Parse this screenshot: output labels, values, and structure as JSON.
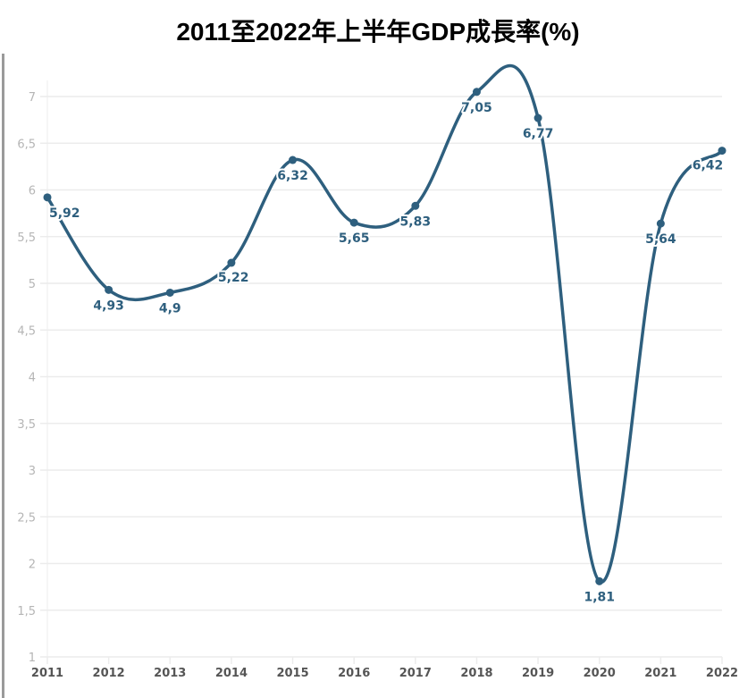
{
  "chart_data": {
    "type": "line",
    "title": "2011至2022年上半年GDP成長率(%)",
    "categories": [
      "2011",
      "2012",
      "2013",
      "2014",
      "2015",
      "2016",
      "2017",
      "2018",
      "2019",
      "2020",
      "2021",
      "2022"
    ],
    "series": [
      {
        "values": [
          5.92,
          4.93,
          4.9,
          5.22,
          6.32,
          5.65,
          5.83,
          7.05,
          6.77,
          1.81,
          5.64,
          6.42
        ]
      }
    ],
    "data_labels": [
      "5,92",
      "4,93",
      "4,9",
      "5,22",
      "6,32",
      "5,65",
      "5,83",
      "7,05",
      "6,77",
      "1,81",
      "5,64",
      "6,42"
    ],
    "yticks": [
      1,
      1.5,
      2,
      2.5,
      3,
      3.5,
      4,
      4.5,
      5,
      5.5,
      6,
      6.5,
      7
    ],
    "ytick_labels": [
      "1",
      "1,5",
      "2",
      "2,5",
      "3",
      "3,5",
      "4",
      "4,5",
      "5",
      "5,5",
      "6",
      "6,5",
      "7"
    ],
    "ylim": [
      1,
      7
    ],
    "grid": true,
    "smooth": true,
    "colors": {
      "line": "#2e5f7e",
      "grid": "#ececec",
      "ytick": "#b5b5b5",
      "xtick": "#555555"
    }
  }
}
